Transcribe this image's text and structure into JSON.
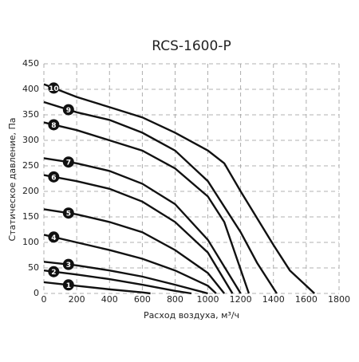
{
  "chart_data": {
    "type": "line",
    "title": "RCS-1600-P",
    "x_label": "Расход воздуха, м³/ч",
    "y_label": "Статическое давление, Па",
    "xlim": [
      0,
      1800
    ],
    "xticks": [
      0,
      200,
      400,
      600,
      800,
      1000,
      1200,
      1400,
      1600,
      1800
    ],
    "ylim": [
      0,
      450
    ],
    "yticks": [
      0,
      50,
      100,
      150,
      200,
      250,
      300,
      350,
      400,
      450
    ],
    "grid": true,
    "series": [
      {
        "name": "1",
        "color": "#111111",
        "x": [
          0,
          200,
          400,
          600,
          650
        ],
        "values": [
          22,
          15,
          8,
          2,
          0
        ]
      },
      {
        "name": "2",
        "color": "#111111",
        "x": [
          0,
          200,
          400,
          600,
          800,
          900
        ],
        "values": [
          45,
          37,
          28,
          17,
          5,
          0
        ]
      },
      {
        "name": "3",
        "color": "#111111",
        "x": [
          0,
          200,
          400,
          600,
          800,
          1000
        ],
        "values": [
          62,
          55,
          45,
          33,
          17,
          0
        ]
      },
      {
        "name": "4",
        "color": "#111111",
        "x": [
          0,
          200,
          400,
          600,
          800,
          1000,
          1050
        ],
        "values": [
          115,
          100,
          85,
          68,
          45,
          15,
          0
        ]
      },
      {
        "name": "5",
        "color": "#111111",
        "x": [
          0,
          200,
          400,
          600,
          800,
          1000,
          1100
        ],
        "values": [
          165,
          155,
          140,
          120,
          85,
          40,
          0
        ]
      },
      {
        "name": "6",
        "color": "#111111",
        "x": [
          0,
          200,
          400,
          600,
          800,
          1000,
          1150
        ],
        "values": [
          232,
          220,
          205,
          180,
          140,
          80,
          0
        ]
      },
      {
        "name": "7",
        "color": "#111111",
        "x": [
          0,
          200,
          400,
          600,
          800,
          1000,
          1200
        ],
        "values": [
          265,
          255,
          240,
          215,
          175,
          105,
          0
        ]
      },
      {
        "name": "8",
        "color": "#111111",
        "x": [
          0,
          200,
          400,
          600,
          800,
          1000,
          1100,
          1250
        ],
        "values": [
          335,
          320,
          300,
          280,
          245,
          190,
          140,
          0
        ]
      },
      {
        "name": "9",
        "color": "#111111",
        "x": [
          0,
          200,
          400,
          600,
          800,
          1000,
          1200,
          1300,
          1420
        ],
        "values": [
          375,
          355,
          340,
          315,
          280,
          220,
          120,
          60,
          0
        ]
      },
      {
        "name": "10",
        "color": "#111111",
        "x": [
          0,
          200,
          400,
          600,
          800,
          1000,
          1100,
          1200,
          1400,
          1500,
          1650
        ],
        "values": [
          410,
          385,
          365,
          345,
          315,
          280,
          255,
          200,
          95,
          45,
          0
        ]
      }
    ]
  }
}
